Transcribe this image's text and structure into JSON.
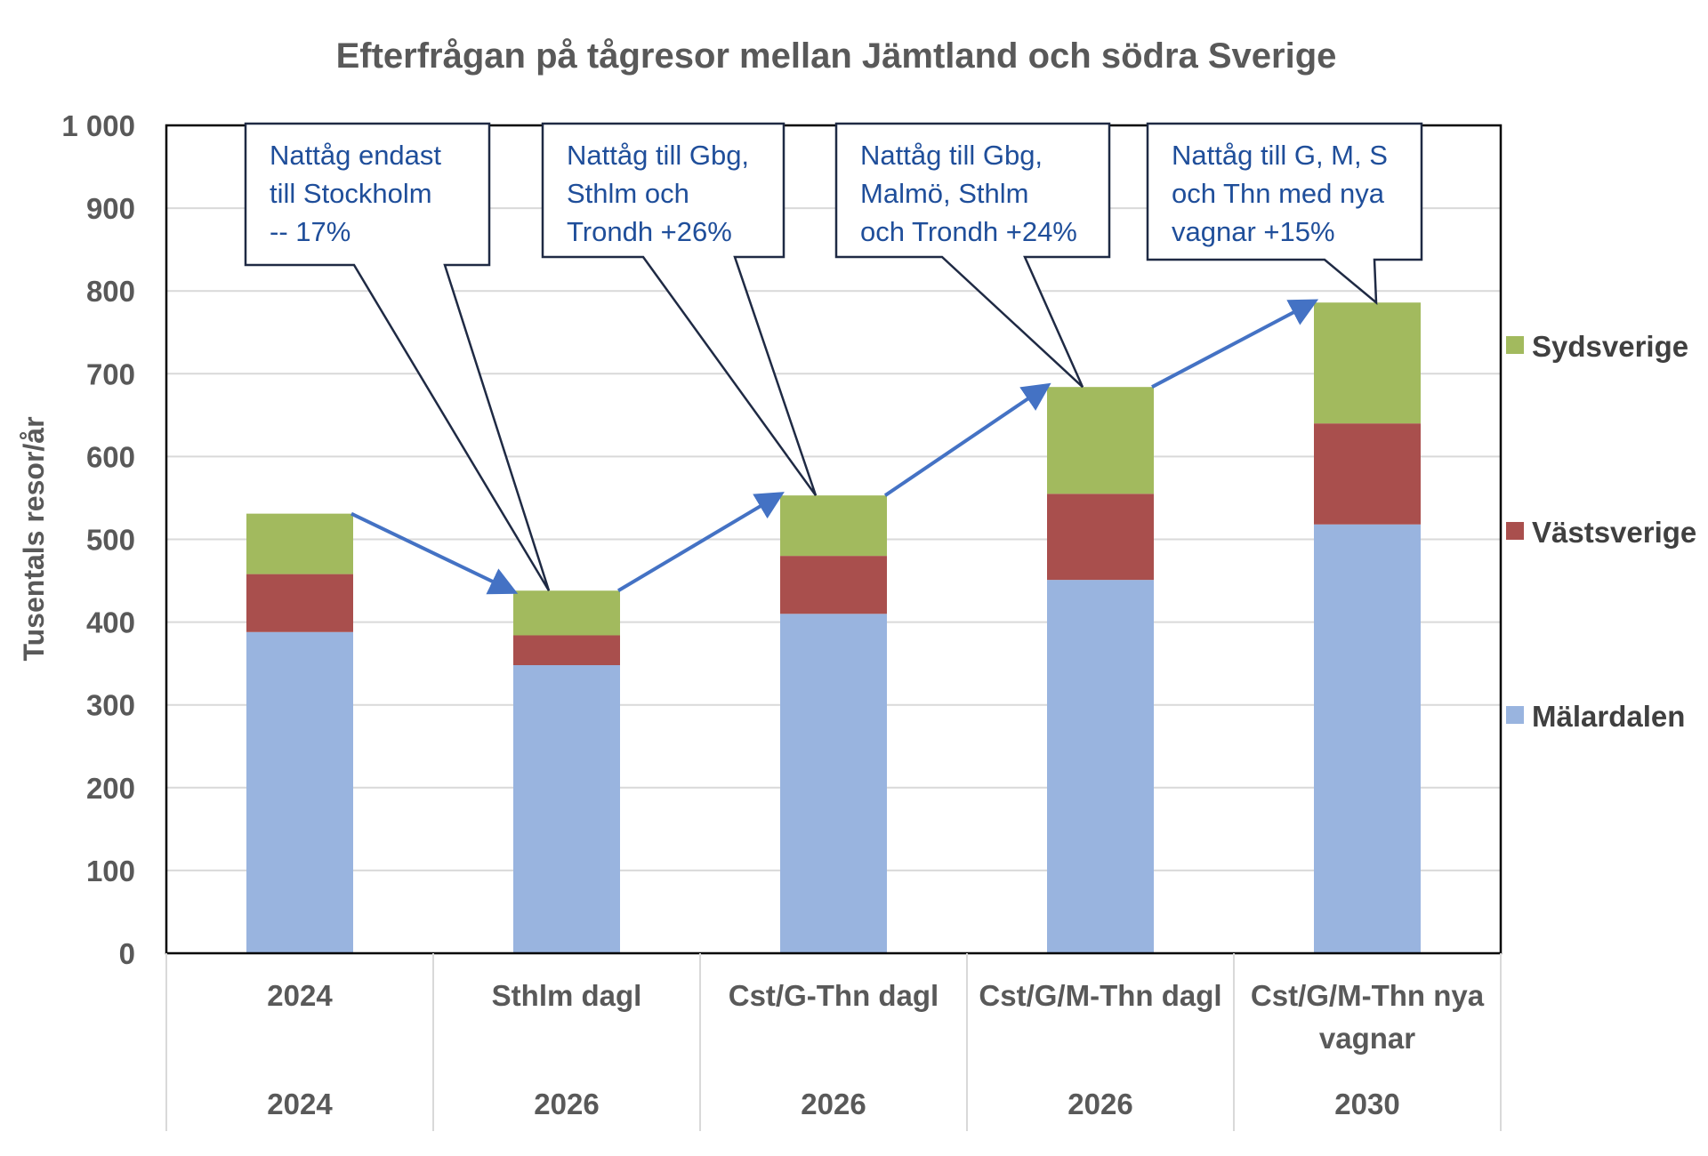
{
  "chart_data": {
    "type": "bar",
    "stacked": true,
    "title": "Efterfrågan på tågresor mellan Jämtland och södra Sverige",
    "ylabel": "Tusentals resor/år",
    "xlabel": "",
    "ylim": [
      0,
      1000
    ],
    "yticks": [
      0,
      100,
      200,
      300,
      400,
      500,
      600,
      700,
      800,
      900,
      1000
    ],
    "ytick_labels": [
      "0",
      "100",
      "200",
      "300",
      "400",
      "500",
      "600",
      "700",
      "800",
      "900",
      "1 000"
    ],
    "grid": true,
    "legend_position": "right",
    "categories": [
      {
        "label_lines": [
          "2024"
        ],
        "group": "2024"
      },
      {
        "label_lines": [
          "Sthlm dagl"
        ],
        "group": "2026"
      },
      {
        "label_lines": [
          "Cst/G-Thn dagl"
        ],
        "group": "2026"
      },
      {
        "label_lines": [
          "Cst/G/M-Thn dagl"
        ],
        "group": "2026"
      },
      {
        "label_lines": [
          "Cst/G/M-Thn nya",
          "vagnar"
        ],
        "group": "2030"
      }
    ],
    "series": [
      {
        "name": "Mälardalen",
        "color": "#99B4DF",
        "values": [
          388,
          348,
          410,
          451,
          518
        ]
      },
      {
        "name": "Västsverige",
        "color": "#A94F4D",
        "values": [
          70,
          36,
          70,
          104,
          122
        ]
      },
      {
        "name": "Sydsverige",
        "color": "#A2BA5E",
        "values": [
          73,
          54,
          73,
          129,
          146
        ]
      }
    ],
    "legend_order": [
      "Sydsverige",
      "Västsverige",
      "Mälardalen"
    ],
    "annotations": [
      {
        "lines": [
          "Nattåg endast",
          "till Stockholm",
          "-- 17%"
        ],
        "points_to": 1
      },
      {
        "lines": [
          "Nattåg till Gbg,",
          "Sthlm och",
          "Trondh +26%"
        ],
        "points_to": 2
      },
      {
        "lines": [
          "Nattåg till Gbg,",
          "Malmö, Sthlm",
          "och Trondh +24%"
        ],
        "points_to": 3
      },
      {
        "lines": [
          "Nattåg till G, M, S",
          "och Thn med nya",
          "vagnar  +15%"
        ],
        "points_to": 4
      }
    ],
    "arrow_color": "#4472C4"
  }
}
